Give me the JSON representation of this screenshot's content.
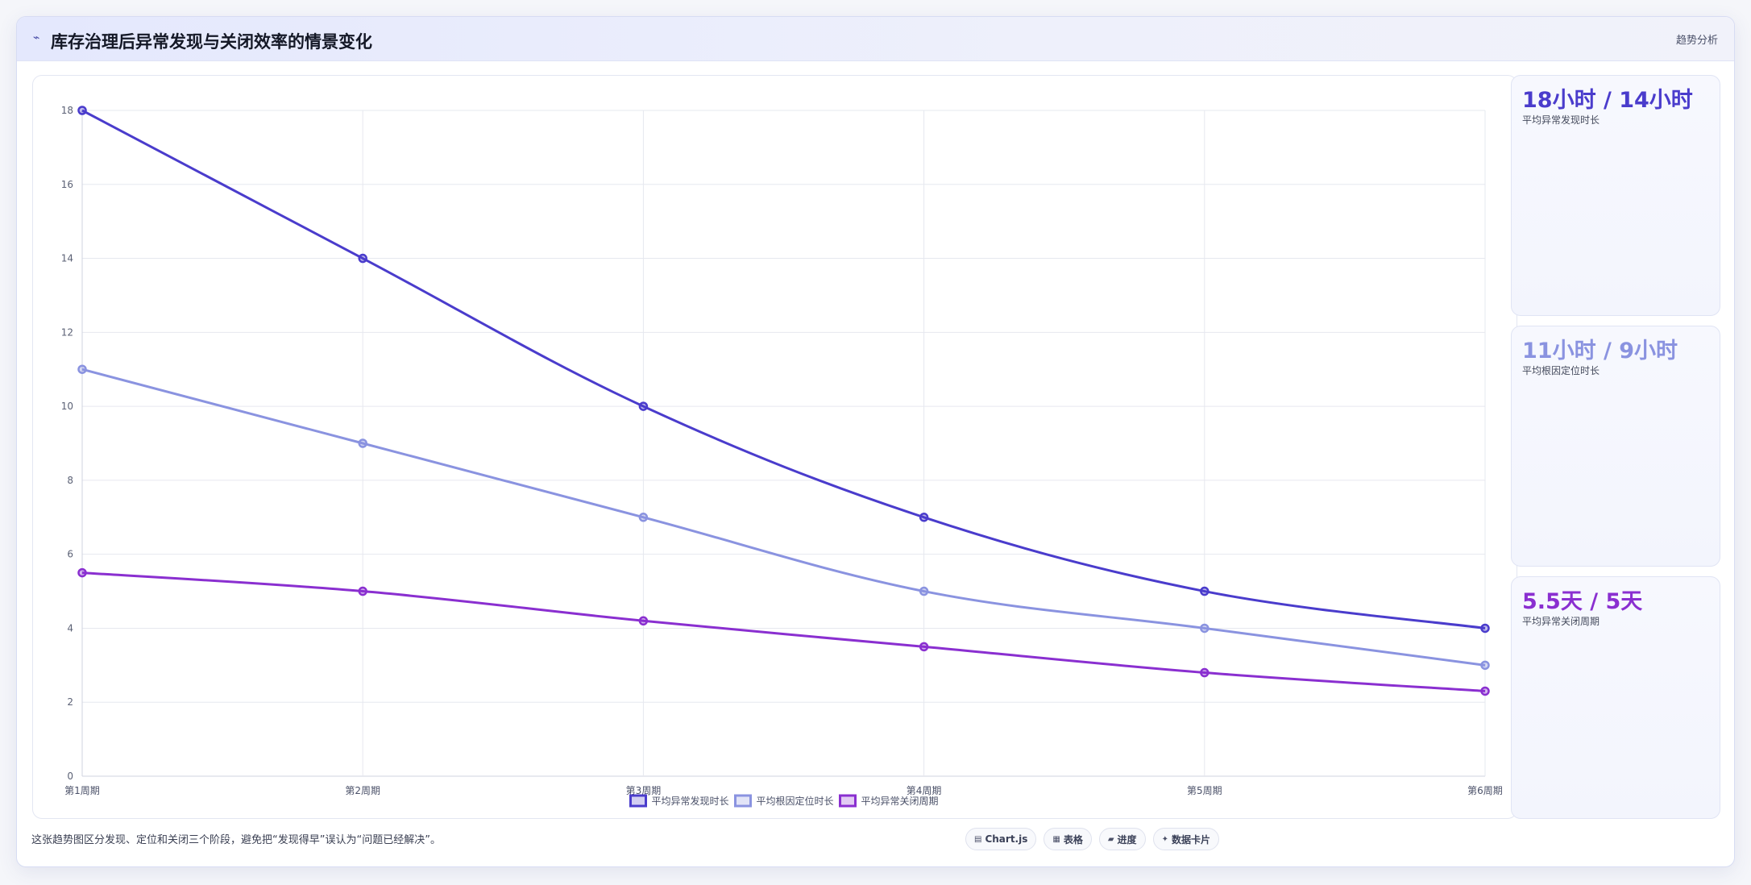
{
  "header": {
    "icon": "trend-icon",
    "title": "库存治理后异常发现与关闭效率的情景变化",
    "tag": "趋势分析"
  },
  "kpis": [
    {
      "value": "18小时 / 14小时",
      "label": "平均异常发现时长",
      "color": "#4a3ccc"
    },
    {
      "value": "11小时 / 9小时",
      "label": "平均根因定位时长",
      "color": "#8a93e0"
    },
    {
      "value": "5.5天 / 5天",
      "label": "平均异常关闭周期",
      "color": "#8a2fd0"
    }
  ],
  "note": "这张趋势图区分发现、定位和关闭三个阶段，避免把“发现得早”误认为“问题已经解决”。",
  "chips": [
    {
      "icon": "chart-icon",
      "label": "Chart.js"
    },
    {
      "icon": "table-icon",
      "label": "表格"
    },
    {
      "icon": "progress-icon",
      "label": "进度"
    },
    {
      "icon": "sparkle-icon",
      "label": "数据卡片"
    }
  ],
  "chart_data": {
    "type": "line",
    "categories": [
      "第1周期",
      "第2周期",
      "第3周期",
      "第4周期",
      "第5周期",
      "第6周期"
    ],
    "series": [
      {
        "name": "平均异常发现时长",
        "values": [
          18,
          14,
          10,
          7,
          5,
          4
        ],
        "color": "#4a3ccc"
      },
      {
        "name": "平均根因定位时长",
        "values": [
          11,
          9,
          7,
          5,
          4,
          3
        ],
        "color": "#8a93e0"
      },
      {
        "name": "平均异常关闭周期",
        "values": [
          5.5,
          5,
          4.2,
          3.5,
          2.8,
          2.3
        ],
        "color": "#8a2fd0"
      }
    ],
    "ylim": [
      0,
      18
    ],
    "yticks": [
      0,
      2,
      4,
      6,
      8,
      10,
      12,
      14,
      16,
      18
    ],
    "grid": true,
    "legend": "bottom-center"
  }
}
